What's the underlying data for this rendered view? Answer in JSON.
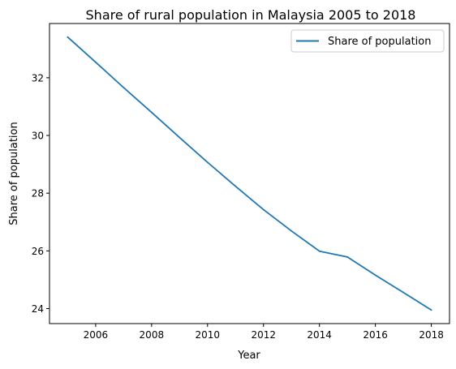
{
  "chart_data": {
    "type": "line",
    "title": "Share of rural population in Malaysia 2005 to 2018",
    "xlabel": "Year",
    "ylabel": "Share of population",
    "xlim": [
      2004.35,
      2018.65
    ],
    "ylim": [
      23.48,
      33.88
    ],
    "x_ticks": [
      "2006",
      "2008",
      "2010",
      "2012",
      "2014",
      "2016",
      "2018"
    ],
    "y_ticks": [
      "24",
      "26",
      "28",
      "30",
      "32"
    ],
    "grid": false,
    "legend_position": "top-right",
    "series": [
      {
        "name": "Share of population",
        "color": "#1f77b4",
        "x": [
          2005,
          2006,
          2007,
          2008,
          2009,
          2010,
          2011,
          2012,
          2013,
          2014,
          2015,
          2016,
          2017,
          2018
        ],
        "values": [
          33.41,
          32.54,
          31.66,
          30.8,
          29.93,
          29.07,
          28.24,
          27.43,
          26.69,
          25.99,
          25.79,
          25.16,
          24.56,
          23.95
        ]
      }
    ]
  }
}
